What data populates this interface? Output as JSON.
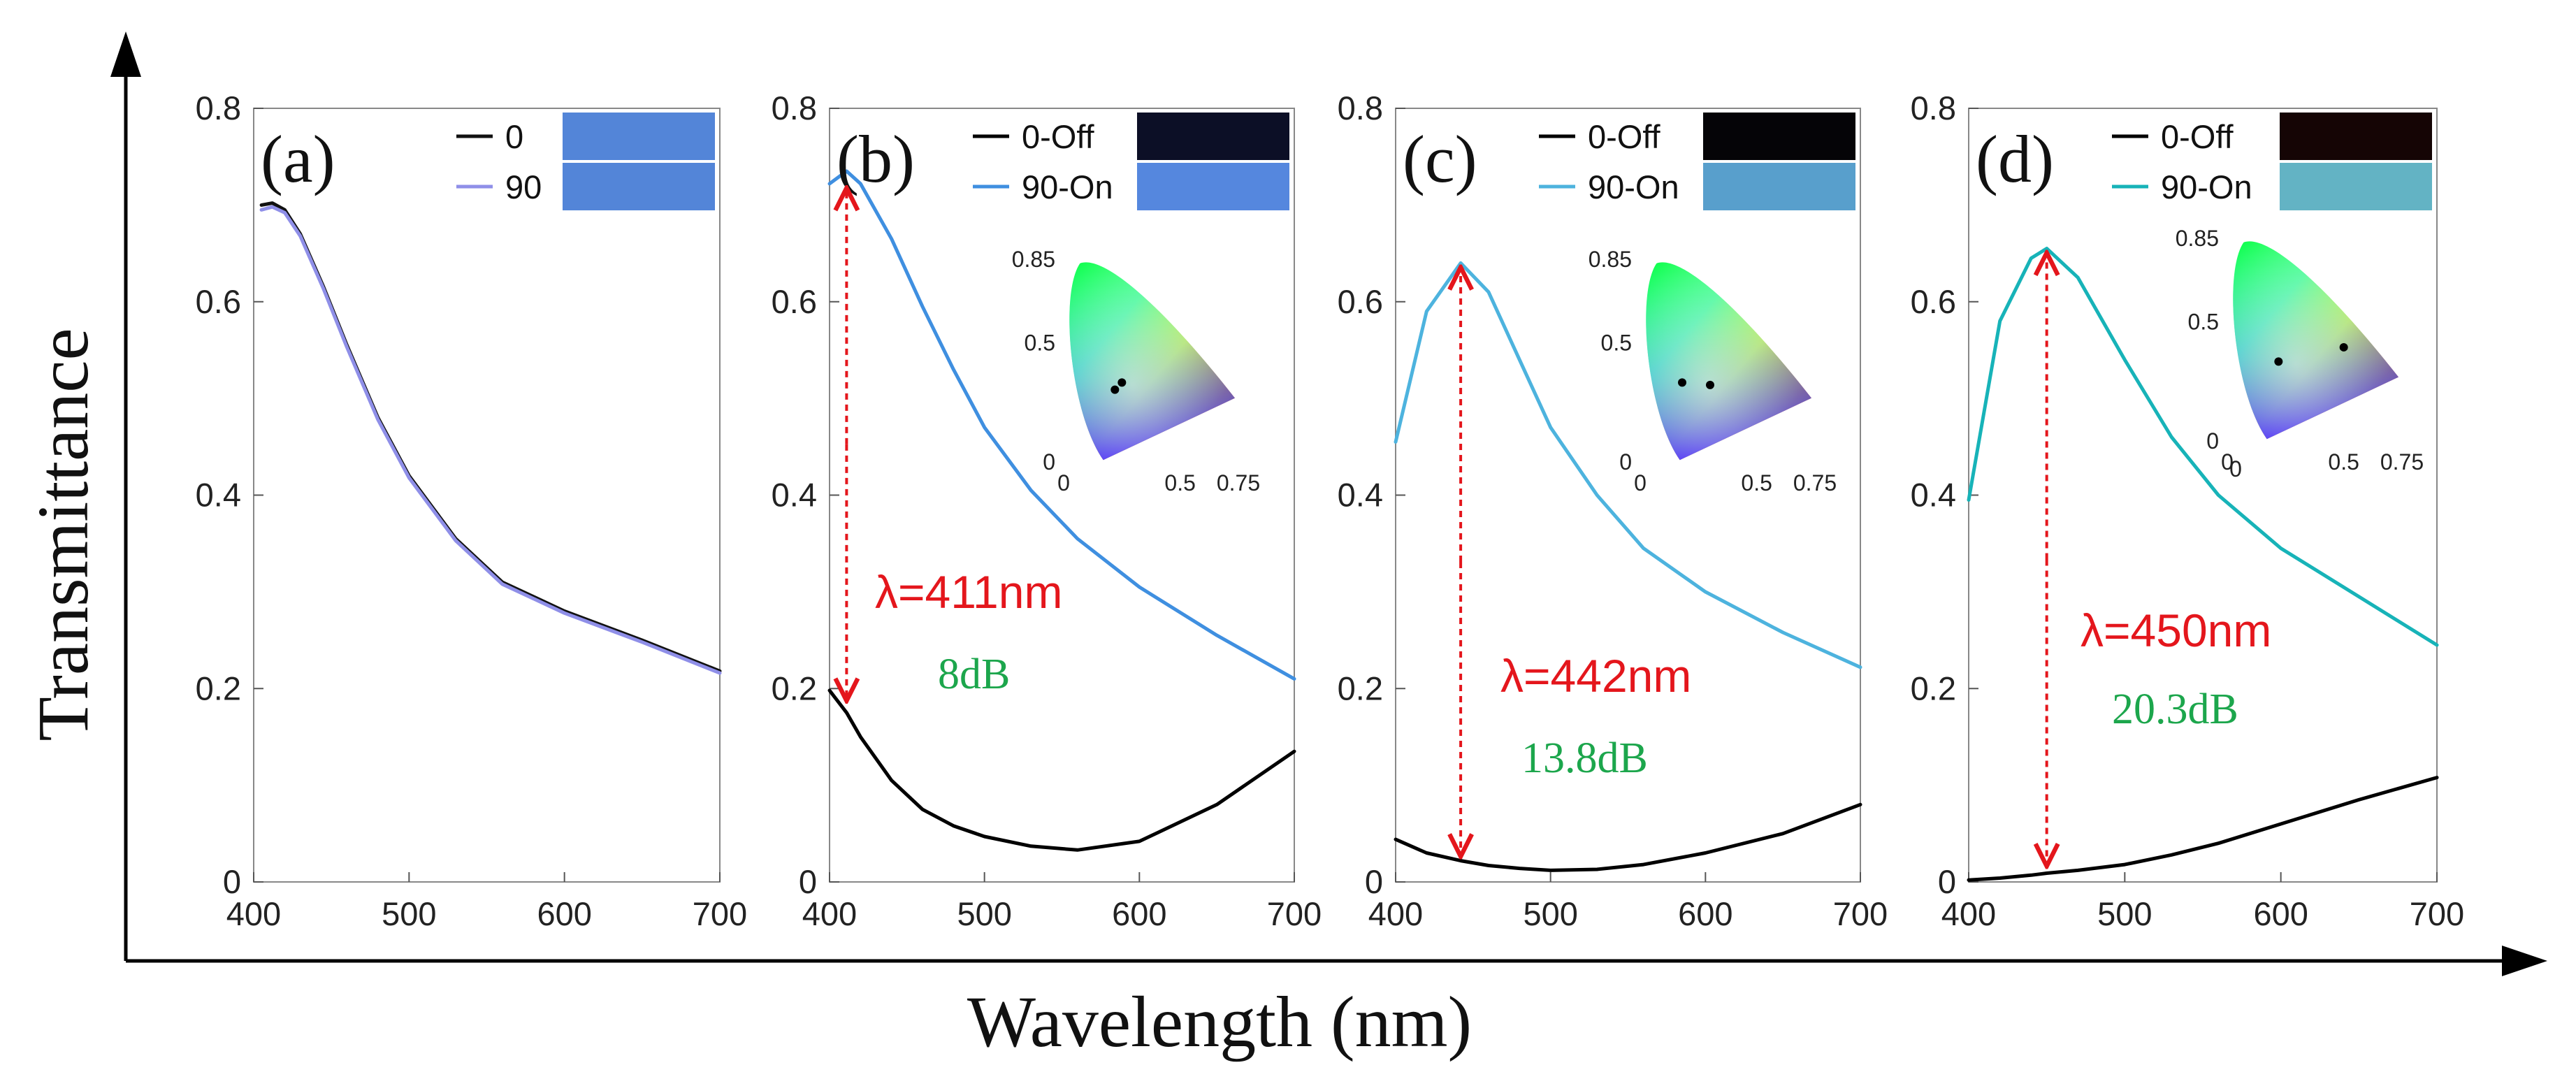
{
  "figure": {
    "x_axis_title": "Wavelength (nm)",
    "y_axis_title": "Transmittance"
  },
  "colors": {
    "on_curve_b": "#3f8fe0",
    "on_curve_c": "#4db3de",
    "on_curve_d": "#17b3b8",
    "curve_90_a": "#8f8fe8",
    "off_curve": "#000000",
    "lambda_text": "#e4161c",
    "db_text": "#1ca64c",
    "arrow": "#e4161c"
  },
  "chart_data": [
    {
      "type": "line",
      "panel_label": "(a)",
      "xlim": [
        400,
        700
      ],
      "ylim": [
        0,
        0.8
      ],
      "x_ticks": [
        "400",
        "500",
        "600",
        "700"
      ],
      "y_ticks": [
        "0",
        "0.2",
        "0.4",
        "0.6",
        "0.8"
      ],
      "x": [
        405,
        412,
        420,
        430,
        445,
        460,
        480,
        500,
        530,
        560,
        600,
        650,
        700
      ],
      "series": [
        {
          "name": "0",
          "color": "#111111",
          "values": [
            0.7,
            0.702,
            0.695,
            0.67,
            0.615,
            0.555,
            0.48,
            0.42,
            0.355,
            0.31,
            0.28,
            0.25,
            0.218
          ]
        },
        {
          "name": "90",
          "color": "#8f8fe8",
          "values": [
            0.695,
            0.698,
            0.692,
            0.668,
            0.613,
            0.553,
            0.478,
            0.418,
            0.353,
            0.308,
            0.278,
            0.248,
            0.216
          ]
        }
      ],
      "legend": [
        {
          "label": "0",
          "swatch": "#5385d8"
        },
        {
          "label": "90",
          "swatch": "#5385d8"
        }
      ]
    },
    {
      "type": "line",
      "panel_label": "(b)",
      "xlim": [
        400,
        700
      ],
      "ylim": [
        0,
        0.8
      ],
      "x_ticks": [
        "400",
        "500",
        "600",
        "700"
      ],
      "y_ticks": [
        "0",
        "0.2",
        "0.4",
        "0.6",
        "0.8"
      ],
      "x": [
        400,
        411,
        420,
        440,
        460,
        480,
        500,
        530,
        560,
        600,
        650,
        700
      ],
      "series": [
        {
          "name": "0-Off",
          "color": "#000000",
          "values": [
            0.198,
            0.175,
            0.15,
            0.105,
            0.075,
            0.058,
            0.047,
            0.037,
            0.033,
            0.042,
            0.08,
            0.135
          ]
        },
        {
          "name": "90-On",
          "color": "#3f8fe0",
          "values": [
            0.722,
            0.735,
            0.722,
            0.665,
            0.595,
            0.53,
            0.47,
            0.405,
            0.355,
            0.305,
            0.255,
            0.21
          ]
        }
      ],
      "legend": [
        {
          "label": "0-Off",
          "swatch": "#0c0f26"
        },
        {
          "label": "90-On",
          "swatch": "#5587de"
        }
      ],
      "annotation": {
        "lambda": "λ=411nm",
        "db": "8dB",
        "arrow_x": 411,
        "arrow_top": 0.722,
        "arrow_bottom": 0.183
      },
      "inset": {
        "x_ticks": [
          "0",
          "0.5",
          "0.75"
        ],
        "y_ticks": [
          "0",
          "0.5",
          "0.85"
        ],
        "points": [
          [
            0.22,
            0.3
          ],
          [
            0.25,
            0.33
          ]
        ]
      }
    },
    {
      "type": "line",
      "panel_label": "(c)",
      "xlim": [
        400,
        700
      ],
      "ylim": [
        0,
        0.8
      ],
      "x_ticks": [
        "400",
        "500",
        "600",
        "700"
      ],
      "y_ticks": [
        "0",
        "0.2",
        "0.4",
        "0.6",
        "0.8"
      ],
      "x": [
        400,
        420,
        442,
        460,
        480,
        500,
        530,
        560,
        600,
        650,
        700
      ],
      "series": [
        {
          "name": "0-Off",
          "color": "#000000",
          "values": [
            0.044,
            0.03,
            0.022,
            0.017,
            0.014,
            0.012,
            0.013,
            0.018,
            0.03,
            0.05,
            0.08
          ]
        },
        {
          "name": "90-On",
          "color": "#4db3de",
          "values": [
            0.455,
            0.59,
            0.64,
            0.61,
            0.54,
            0.47,
            0.4,
            0.345,
            0.3,
            0.258,
            0.222
          ]
        }
      ],
      "legend": [
        {
          "label": "0-Off",
          "swatch": "#050407"
        },
        {
          "label": "90-On",
          "swatch": "#589fcc"
        }
      ],
      "annotation": {
        "lambda": "λ=442nm",
        "db": "13.8dB",
        "arrow_x": 442,
        "arrow_top": 0.64,
        "arrow_bottom": 0.022
      },
      "inset": {
        "x_ticks": [
          "0",
          "0.5",
          "0.75"
        ],
        "y_ticks": [
          "0",
          "0.5",
          "0.85"
        ],
        "points": [
          [
            0.18,
            0.33
          ],
          [
            0.3,
            0.32
          ]
        ]
      }
    },
    {
      "type": "line",
      "panel_label": "(d)",
      "xlim": [
        400,
        700
      ],
      "ylim": [
        0,
        0.8
      ],
      "x_ticks": [
        "400",
        "500",
        "600",
        "700"
      ],
      "y_ticks": [
        "0",
        "0.2",
        "0.4",
        "0.6",
        "0.8"
      ],
      "x": [
        400,
        420,
        440,
        450,
        470,
        500,
        530,
        560,
        600,
        650,
        700
      ],
      "series": [
        {
          "name": "0-Off",
          "color": "#000000",
          "values": [
            0.002,
            0.004,
            0.007,
            0.009,
            0.012,
            0.018,
            0.028,
            0.04,
            0.06,
            0.085,
            0.108
          ]
        },
        {
          "name": "90-On",
          "color": "#17b3b8",
          "values": [
            0.395,
            0.58,
            0.645,
            0.655,
            0.625,
            0.54,
            0.46,
            0.4,
            0.345,
            0.295,
            0.245
          ]
        }
      ],
      "legend": [
        {
          "label": "0-Off",
          "swatch": "#150505"
        },
        {
          "label": "90-On",
          "swatch": "#63b3c4"
        }
      ],
      "annotation": {
        "lambda": "λ=450nm",
        "db": "20.3dB",
        "arrow_x": 450,
        "arrow_top": 0.655,
        "arrow_bottom": 0.012
      },
      "inset": {
        "x_ticks": [
          "0",
          "0.5",
          "0.75"
        ],
        "y_ticks": [
          "0",
          "0.5",
          "0.85"
        ],
        "extra_tick": "0",
        "points": [
          [
            0.22,
            0.33
          ],
          [
            0.5,
            0.39
          ]
        ]
      }
    }
  ]
}
